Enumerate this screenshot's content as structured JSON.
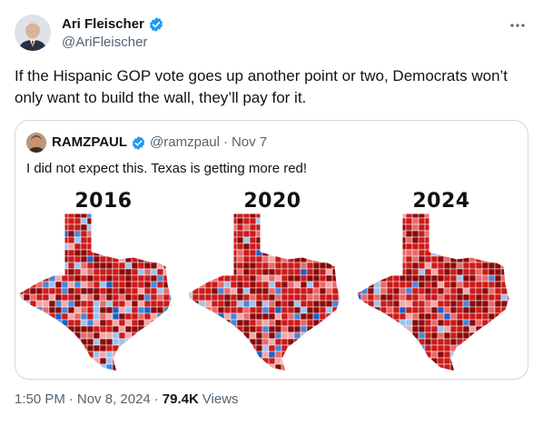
{
  "author": {
    "display_name": "Ari Fleischer",
    "handle": "@AriFleischer",
    "verified": true
  },
  "tweet": {
    "text": "If the Hispanic GOP vote goes up another point or two, Democrats won’t only want to build the wall, they’ll pay for it."
  },
  "quoted_tweet": {
    "display_name": "RAMZPAUL",
    "handle": "@ramzpaul",
    "separator": "·",
    "date": "Nov 7",
    "text": "I did not expect this. Texas is getting more red!",
    "maps": [
      {
        "year": "2016",
        "red_share": 0.72
      },
      {
        "year": "2020",
        "red_share": 0.8
      },
      {
        "year": "2024",
        "red_share": 0.9
      }
    ]
  },
  "meta": {
    "time": "1:50 PM",
    "separator": "·",
    "date": "Nov 8, 2024",
    "separator2": "·",
    "views_count": "79.4K",
    "views_label": "Views"
  },
  "colors": {
    "verified": "#1d9bf0",
    "red_dark": "#8b0a0a",
    "red": "#cc1a1a",
    "red_light": "#e66a6a",
    "pink": "#f2a7a7",
    "blue_light": "#9ec3ef",
    "blue": "#4a86d8",
    "blue_dark": "#1f5fc4"
  }
}
